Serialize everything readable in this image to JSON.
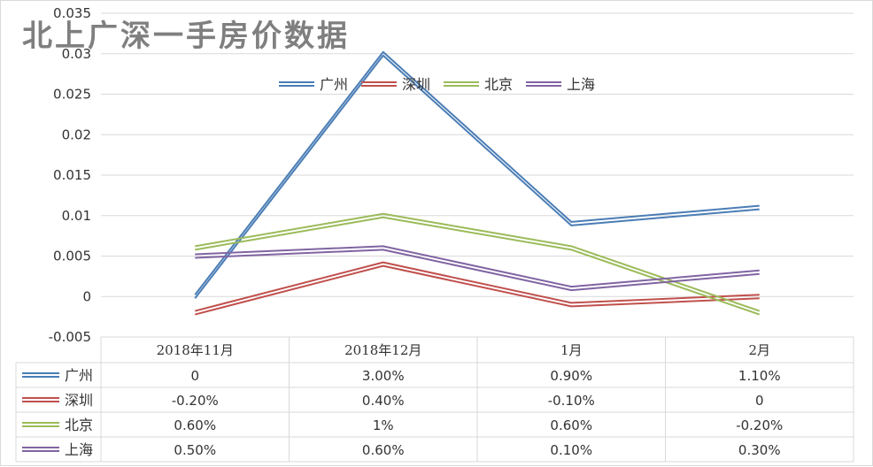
{
  "chart_data": {
    "type": "line",
    "title": "北上广深一手房价数据",
    "categories": [
      "2018年11月",
      "2018年12月",
      "1月",
      "2月"
    ],
    "ylim": [
      -0.005,
      0.035
    ],
    "yticks": [
      "-0.005",
      "0",
      "0.005",
      "0.01",
      "0.015",
      "0.02",
      "0.025",
      "0.03",
      "0.035"
    ],
    "grid": true,
    "legend": "top-center",
    "line_style": "double",
    "series": [
      {
        "name": "广州",
        "color": "#4a7db5",
        "values": [
          0,
          0.03,
          0.009,
          0.011
        ],
        "labels": [
          "0",
          "3.00%",
          "0.90%",
          "1.10%"
        ]
      },
      {
        "name": "深圳",
        "color": "#c0504d",
        "values": [
          -0.002,
          0.004,
          -0.001,
          0
        ],
        "labels": [
          "-0.20%",
          "0.40%",
          "-0.10%",
          "0"
        ]
      },
      {
        "name": "北京",
        "color": "#9bbb59",
        "values": [
          0.006,
          0.01,
          0.006,
          -0.002
        ],
        "labels": [
          "0.60%",
          "1%",
          "0.60%",
          "-0.20%"
        ]
      },
      {
        "name": "上海",
        "color": "#8064a2",
        "values": [
          0.005,
          0.006,
          0.001,
          0.003
        ],
        "labels": [
          "0.50%",
          "0.60%",
          "0.10%",
          "0.30%"
        ]
      }
    ]
  }
}
